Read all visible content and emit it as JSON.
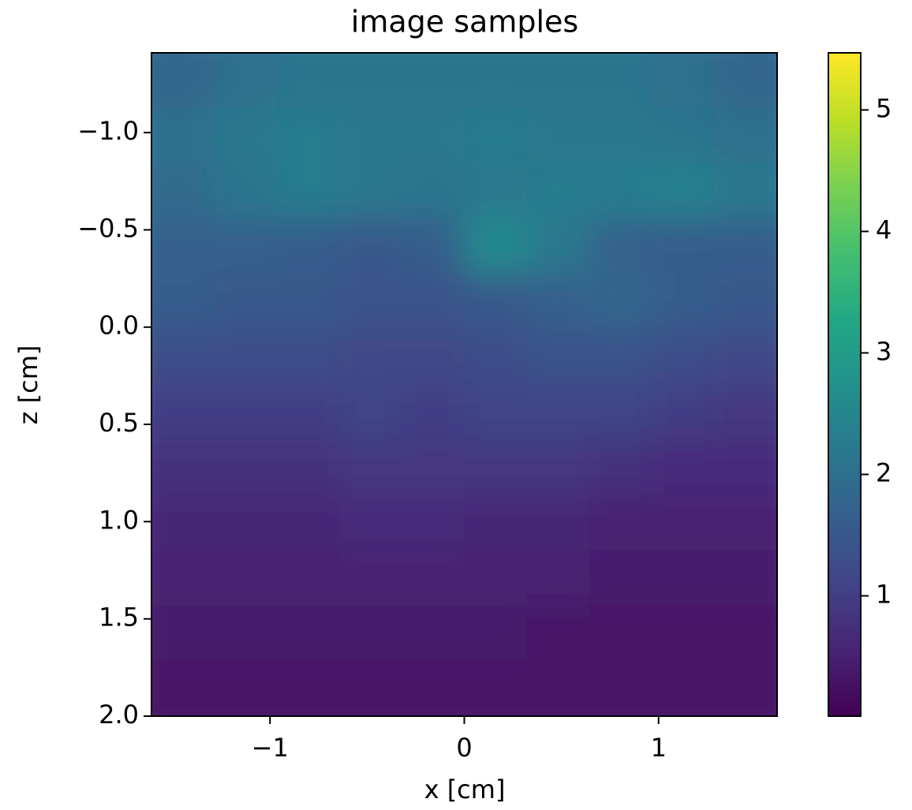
{
  "chart_data": {
    "type": "heatmap",
    "title": "image samples",
    "x_label": "x [cm]",
    "y_label": "z [cm]",
    "xlim": [
      -1.61,
      1.61
    ],
    "ylim": [
      -1.41,
      2.0
    ],
    "y_inverted": true,
    "xticks": [
      {
        "value": -1,
        "label": "−1"
      },
      0,
      1
    ],
    "yticks": [
      {
        "value": -1.0,
        "label": "−1.0"
      },
      {
        "value": -0.5,
        "label": "−0.5"
      },
      {
        "value": 0.0,
        "label": "0.0"
      },
      0.5,
      {
        "value": 1.0,
        "label": "1.0"
      },
      1.5,
      {
        "value": 2.0,
        "label": "2.0"
      }
    ],
    "colormap": "viridis",
    "clim": [
      0.01,
      5.47
    ],
    "colorbar_ticks": [
      1,
      2,
      3,
      4,
      5
    ],
    "values": [
      [
        1.8,
        2.0,
        2.1,
        2.1,
        2.1,
        2.1,
        2.1,
        2.1,
        2.0,
        1.8
      ],
      [
        2.0,
        2.2,
        2.3,
        2.2,
        2.2,
        2.3,
        2.2,
        2.2,
        2.1,
        2.0
      ],
      [
        1.9,
        2.1,
        2.3,
        2.2,
        2.1,
        2.2,
        2.3,
        2.3,
        2.4,
        2.2
      ],
      [
        1.7,
        1.7,
        1.6,
        1.5,
        1.6,
        2.6,
        2.2,
        1.7,
        1.6,
        1.6
      ],
      [
        1.6,
        1.5,
        1.5,
        1.4,
        1.4,
        1.5,
        1.7,
        1.8,
        1.6,
        1.5
      ],
      [
        1.3,
        1.3,
        1.3,
        1.2,
        1.2,
        1.3,
        1.4,
        1.4,
        1.3,
        1.2
      ],
      [
        1.0,
        1.0,
        1.0,
        1.1,
        1.0,
        1.1,
        1.1,
        1.1,
        1.0,
        0.9
      ],
      [
        0.8,
        0.8,
        0.8,
        0.9,
        0.9,
        0.9,
        0.9,
        0.8,
        0.7,
        0.7
      ],
      [
        0.6,
        0.6,
        0.6,
        0.7,
        0.7,
        0.6,
        0.6,
        0.5,
        0.5,
        0.5
      ],
      [
        0.5,
        0.5,
        0.5,
        0.5,
        0.5,
        0.5,
        0.5,
        0.4,
        0.4,
        0.4
      ],
      [
        0.4,
        0.4,
        0.4,
        0.4,
        0.4,
        0.4,
        0.3,
        0.3,
        0.3,
        0.3
      ],
      [
        0.3,
        0.3,
        0.3,
        0.3,
        0.3,
        0.3,
        0.3,
        0.3,
        0.3,
        0.3
      ]
    ]
  }
}
